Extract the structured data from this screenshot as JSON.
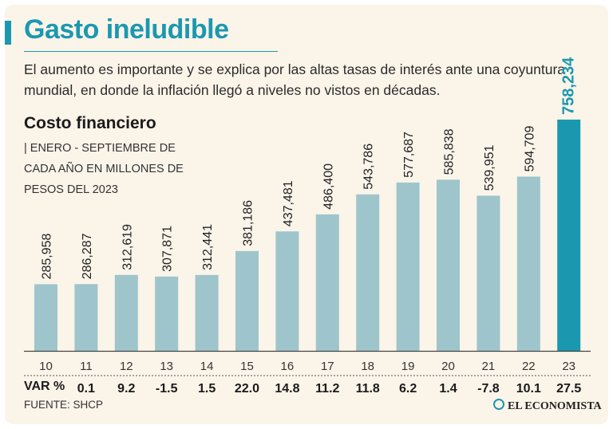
{
  "header": {
    "title": "Gasto ineludible",
    "subtitle": "El aumento es importante y se explica por las altas tasas de interés ante una coyuntura mundial, en donde la inflación llegó a niveles no vistos en décadas."
  },
  "chart_data": {
    "type": "bar",
    "title": "Costo financiero",
    "subtitle_pipe": "|",
    "subtitle": "ENERO - SEPTIEMBRE DE CADA AÑO EN MILLONES DE PESOS DEL 2023",
    "categories": [
      "10",
      "11",
      "12",
      "13",
      "14",
      "15",
      "16",
      "17",
      "18",
      "19",
      "20",
      "21",
      "22",
      "23"
    ],
    "values": [
      285958,
      286287,
      312619,
      307871,
      312441,
      381186,
      437481,
      486400,
      543786,
      577687,
      585838,
      539951,
      594709,
      758234
    ],
    "value_labels": [
      "285,958",
      "286,287",
      "312,619",
      "307,871",
      "312,441",
      "381,186",
      "437,481",
      "486,400",
      "543,786",
      "577,687",
      "585,838",
      "539,951",
      "594,709",
      "758,234"
    ],
    "variation_label": "VAR %",
    "variation": [
      "0.1",
      "9.2",
      "-1.5",
      "1.5",
      "22.0",
      "14.8",
      "11.2",
      "11.8",
      "6.2",
      "1.4",
      "-7.8",
      "10.1",
      "27.5"
    ],
    "highlight_index": 13,
    "colors": {
      "bar": "#9ec5cc",
      "highlight": "#1b98b0",
      "axis": "#444444"
    }
  },
  "footer": {
    "source": "FUENTE: SHCP",
    "brand": "EL ECONOMISTA"
  }
}
